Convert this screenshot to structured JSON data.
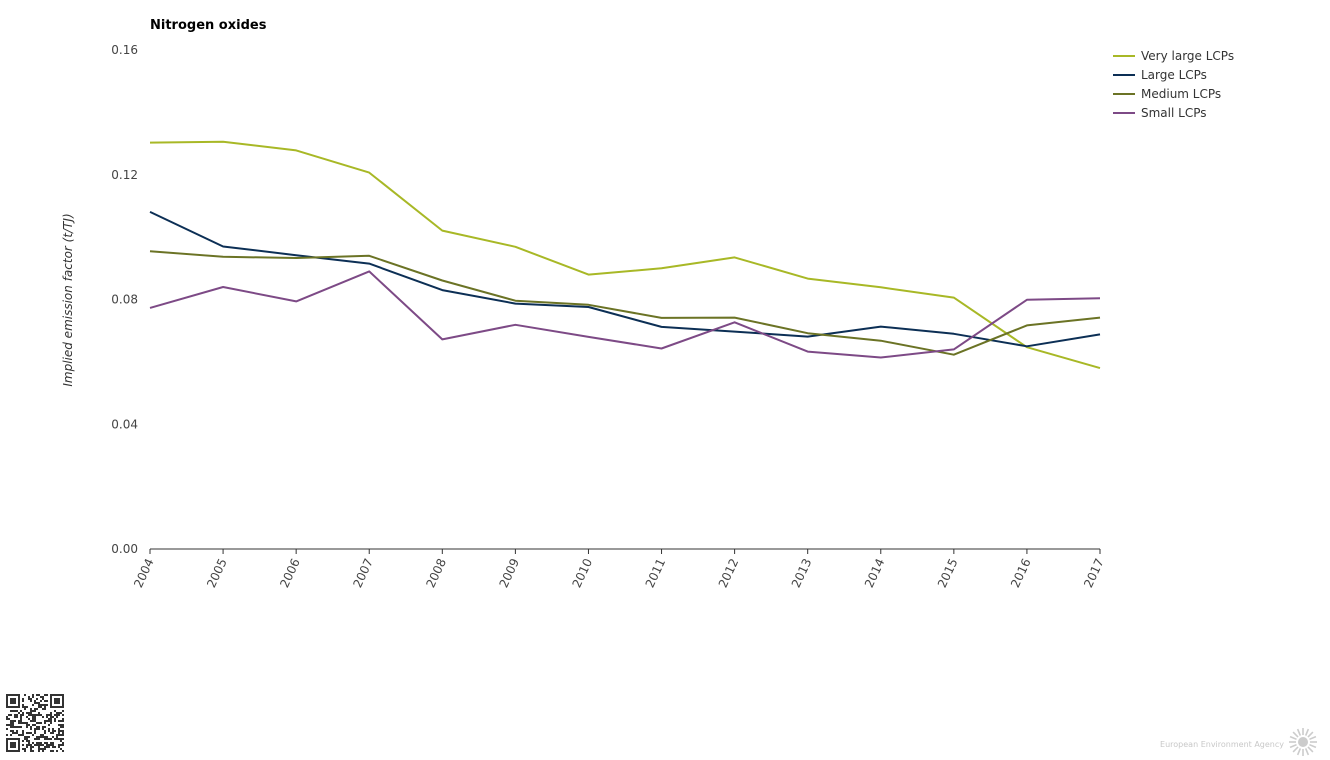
{
  "chart_data": {
    "type": "line",
    "title": "Nitrogen oxides",
    "xlabel": "",
    "ylabel": "Implied emission factor (t/TJ)",
    "x": [
      "2004",
      "2005",
      "2006",
      "2007",
      "2008",
      "2009",
      "2010",
      "2011",
      "2012",
      "2013",
      "2014",
      "2015",
      "2016",
      "2017"
    ],
    "ylim": [
      0,
      0.16
    ],
    "yticks": [
      "0.00",
      "0.04",
      "0.08",
      "0.12",
      "0.16"
    ],
    "grid": false,
    "legend_position": "top-right",
    "series": [
      {
        "name": "Very large LCPs",
        "color": "#a8b826",
        "values": [
          0.1303,
          0.1306,
          0.1278,
          0.1207,
          0.1021,
          0.0969,
          0.088,
          0.09,
          0.0935,
          0.0867,
          0.0839,
          0.0806,
          0.0647,
          0.058
        ]
      },
      {
        "name": "Large LCPs",
        "color": "#0c2f55",
        "values": [
          0.1081,
          0.097,
          0.0942,
          0.0915,
          0.083,
          0.0787,
          0.0776,
          0.0712,
          0.0697,
          0.0681,
          0.0713,
          0.069,
          0.065,
          0.0688
        ]
      },
      {
        "name": "Medium LCPs",
        "color": "#6b7325",
        "values": [
          0.0955,
          0.0937,
          0.0933,
          0.094,
          0.0861,
          0.0796,
          0.0783,
          0.0741,
          0.0742,
          0.0692,
          0.0668,
          0.0623,
          0.0717,
          0.0742
        ]
      },
      {
        "name": "Small LCPs",
        "color": "#7d4a86",
        "values": [
          0.0773,
          0.084,
          0.0794,
          0.089,
          0.0672,
          0.0719,
          0.068,
          0.0643,
          0.0727,
          0.0633,
          0.0614,
          0.064,
          0.0799,
          0.0804
        ]
      }
    ]
  },
  "footer": {
    "brand": "European Environment Agency",
    "logo_icon": "eea-sun-icon",
    "qr_icon": "qr-code-icon"
  }
}
